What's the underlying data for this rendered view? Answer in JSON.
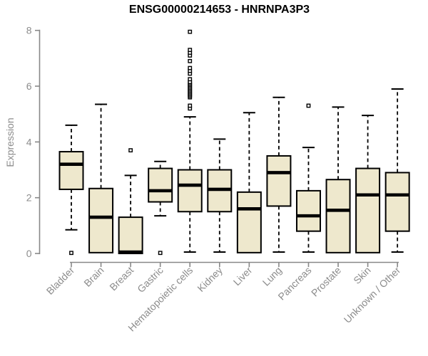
{
  "title": "ENSG00000214653 - HNRNPA3P3",
  "colors": {
    "box_fill": "#EEE8CD",
    "box_border": "#000000",
    "median": "#000000",
    "whisker": "#000000",
    "outlier_fill": "#ffffff",
    "axis_line": "#888888",
    "tick_text": "#8c8c8c",
    "category_text": "#8c8c8c",
    "title_text": "#000000",
    "background": "#ffffff"
  },
  "chart_data": {
    "type": "boxplot",
    "title": "ENSG00000214653 - HNRNPA3P3",
    "xlabel": "",
    "ylabel": "Expression",
    "ylim": [
      0,
      8
    ],
    "yticks": [
      "0",
      "2",
      "4",
      "6",
      "8"
    ],
    "grid": false,
    "legend": "none",
    "categories": [
      "Bladder",
      "Brain",
      "Breast",
      "Gastric",
      "Hematopoietic cells",
      "Kidney",
      "Liver",
      "Lung",
      "Pancreas",
      "Prostate",
      "Skin",
      "Unknown / Other"
    ],
    "series": [
      {
        "name": "Bladder",
        "whisker_low": 0.85,
        "q1": 2.3,
        "median": 3.2,
        "q3": 3.65,
        "whisker_high": 4.6,
        "outliers": [
          0.02
        ]
      },
      {
        "name": "Brain",
        "whisker_low": 0.03,
        "q1": 0.03,
        "median": 1.3,
        "q3": 2.33,
        "whisker_high": 5.35,
        "outliers": []
      },
      {
        "name": "Breast",
        "whisker_low": 0.0,
        "q1": 0.0,
        "median": 0.05,
        "q3": 1.3,
        "whisker_high": 2.8,
        "outliers": [
          3.7
        ]
      },
      {
        "name": "Gastric",
        "whisker_low": 1.35,
        "q1": 1.85,
        "median": 2.25,
        "q3": 3.05,
        "whisker_high": 3.3,
        "outliers": [
          0.02
        ]
      },
      {
        "name": "Hematopoietic cells",
        "whisker_low": 0.05,
        "q1": 1.5,
        "median": 2.45,
        "q3": 3.0,
        "whisker_high": 4.9,
        "outliers": [
          5.2,
          5.3,
          5.6,
          5.65,
          5.7,
          5.75,
          5.8,
          5.85,
          5.9,
          5.95,
          6.0,
          6.05,
          6.1,
          6.15,
          6.25,
          6.45,
          6.55,
          6.65,
          6.9,
          7.1,
          7.2,
          7.3,
          7.95
        ]
      },
      {
        "name": "Kidney",
        "whisker_low": 0.05,
        "q1": 1.5,
        "median": 2.3,
        "q3": 3.0,
        "whisker_high": 4.1,
        "outliers": []
      },
      {
        "name": "Liver",
        "whisker_low": 0.03,
        "q1": 0.03,
        "median": 1.6,
        "q3": 2.2,
        "whisker_high": 5.05,
        "outliers": []
      },
      {
        "name": "Lung",
        "whisker_low": 0.05,
        "q1": 1.7,
        "median": 2.9,
        "q3": 3.5,
        "whisker_high": 5.6,
        "outliers": []
      },
      {
        "name": "Pancreas",
        "whisker_low": 0.05,
        "q1": 0.8,
        "median": 1.35,
        "q3": 2.25,
        "whisker_high": 3.8,
        "outliers": [
          5.3
        ]
      },
      {
        "name": "Prostate",
        "whisker_low": 0.03,
        "q1": 0.03,
        "median": 1.55,
        "q3": 2.65,
        "whisker_high": 5.25,
        "outliers": []
      },
      {
        "name": "Skin",
        "whisker_low": 0.03,
        "q1": 0.03,
        "median": 2.1,
        "q3": 3.05,
        "whisker_high": 4.95,
        "outliers": []
      },
      {
        "name": "Unknown / Other",
        "whisker_low": 0.05,
        "q1": 0.8,
        "median": 2.1,
        "q3": 2.9,
        "whisker_high": 5.9,
        "outliers": []
      }
    ]
  }
}
